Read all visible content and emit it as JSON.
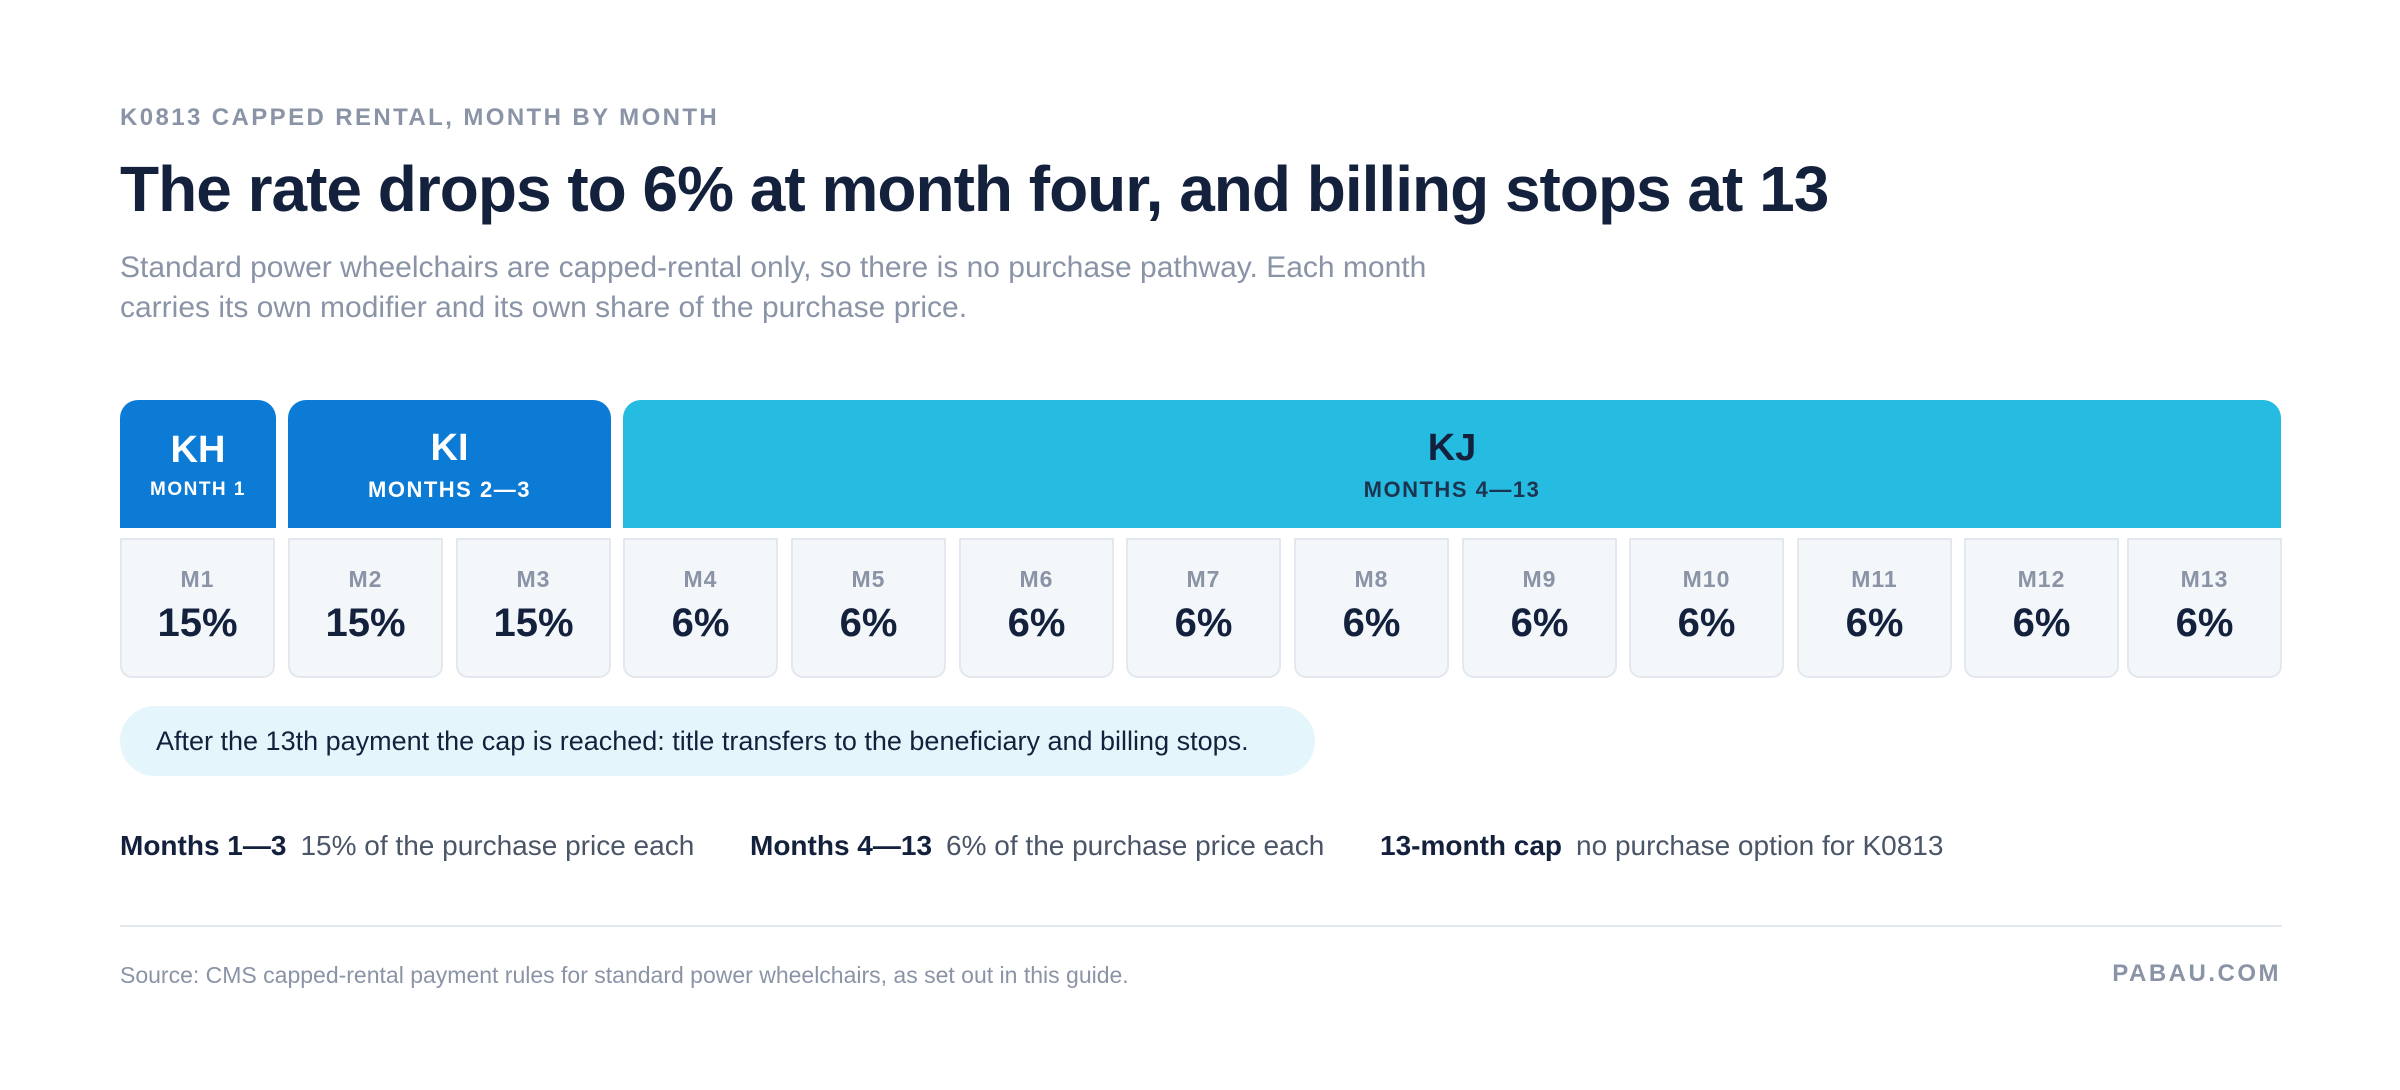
{
  "eyebrow": "K0813 CAPPED RENTAL, MONTH BY MONTH",
  "title": "The rate drops to 6% at month four, and billing stops at 13",
  "subtitle": "Standard power wheelchairs are capped-rental only, so there is no purchase pathway. Each month carries its own modifier and its own share of the purchase price.",
  "bands": [
    {
      "code": "KH",
      "months": "MONTH 1",
      "color": "#0b7bd6"
    },
    {
      "code": "KI",
      "months": "MONTHS 2—3",
      "color": "#0b7bd6"
    },
    {
      "code": "KJ",
      "months": "MONTHS 4—13",
      "color": "#26bce2"
    }
  ],
  "months": [
    {
      "label": "M1",
      "rate": "15%"
    },
    {
      "label": "M2",
      "rate": "15%"
    },
    {
      "label": "M3",
      "rate": "15%"
    },
    {
      "label": "M4",
      "rate": "6%"
    },
    {
      "label": "M5",
      "rate": "6%"
    },
    {
      "label": "M6",
      "rate": "6%"
    },
    {
      "label": "M7",
      "rate": "6%"
    },
    {
      "label": "M8",
      "rate": "6%"
    },
    {
      "label": "M9",
      "rate": "6%"
    },
    {
      "label": "M10",
      "rate": "6%"
    },
    {
      "label": "M11",
      "rate": "6%"
    },
    {
      "label": "M12",
      "rate": "6%"
    },
    {
      "label": "M13",
      "rate": "6%"
    }
  ],
  "callout": "After the 13th payment the cap is reached: title transfers to the beneficiary and billing stops.",
  "legend": [
    {
      "key": "Months 1—3",
      "value": "15% of the purchase price each"
    },
    {
      "key": "Months 4—13",
      "value": "6% of the purchase price each"
    },
    {
      "key": "13-month cap",
      "value": "no purchase option for K0813"
    }
  ],
  "source": "Source: CMS capped-rental payment rules for standard power wheelchairs, as set out in this guide.",
  "brand": "PABAU.COM"
}
